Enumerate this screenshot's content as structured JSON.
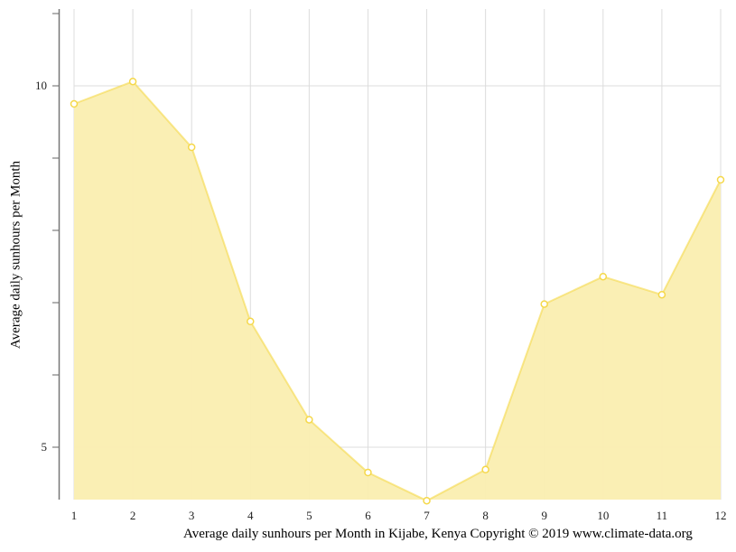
{
  "chart_data": {
    "type": "area",
    "title": "",
    "xlabel": "Average daily sunhours per Month in Kijabe, Kenya Copyright © 2019 www.climate-data.org",
    "ylabel": "Average daily sunhours per Month",
    "categories": [
      "1",
      "2",
      "3",
      "4",
      "5",
      "6",
      "7",
      "8",
      "9",
      "10",
      "11",
      "12"
    ],
    "series": [
      {
        "name": "Average daily sunhours",
        "values": [
          9.75,
          10.06,
          9.15,
          6.74,
          5.38,
          4.65,
          4.26,
          4.69,
          6.98,
          7.36,
          7.11,
          8.7
        ],
        "color": "#f5d84a",
        "fill": "#faeeb0"
      }
    ],
    "yticks_labeled": [
      5,
      10
    ],
    "yticks_minor": [
      6,
      7,
      8,
      9,
      11
    ],
    "ylim": [
      4.275,
      11.1
    ],
    "grid": true,
    "legend": "none"
  },
  "labels": {
    "y_title": "Average daily sunhours per Month",
    "caption": "Average daily sunhours per Month in Kijabe, Kenya Copyright © 2019 www.climate-data.org"
  }
}
